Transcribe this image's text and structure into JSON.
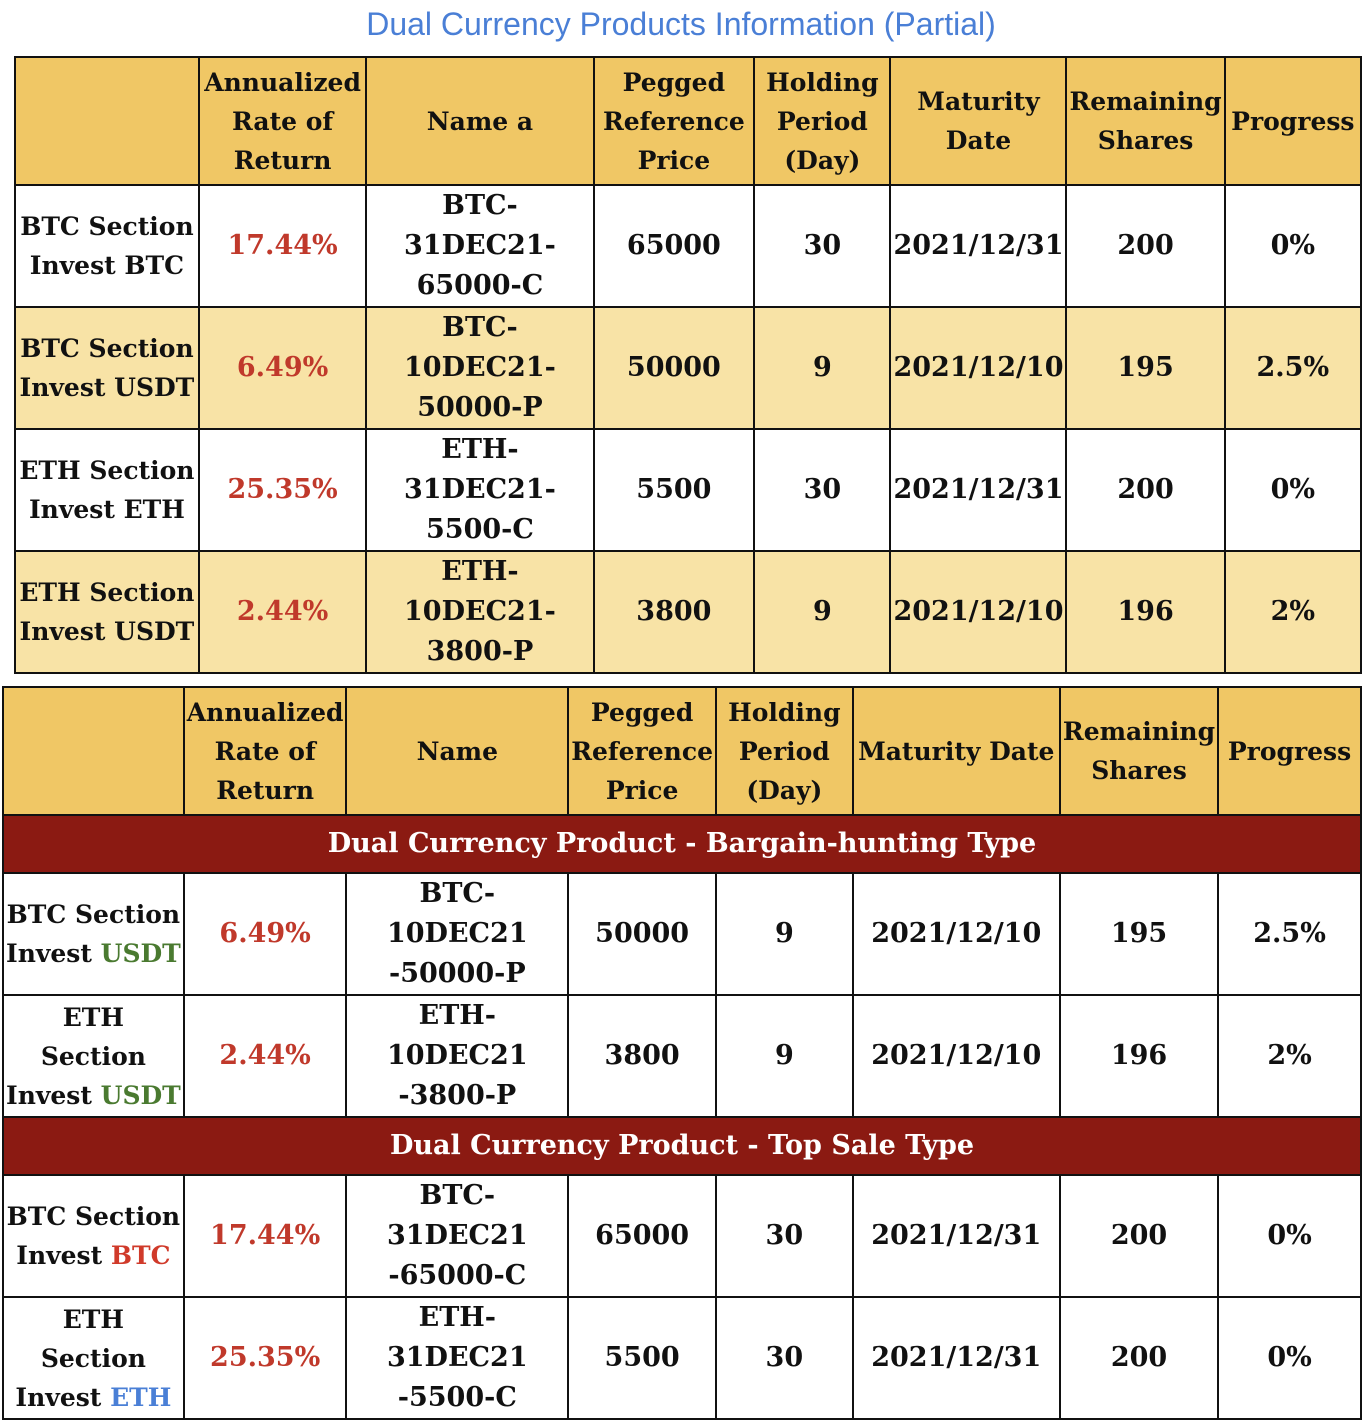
{
  "title": "Dual Currency Products Information (Partial)",
  "colors": {
    "title": "#4a7fd6",
    "header_bg": "#f0c765",
    "alt_row_bg": "#f8e3a6",
    "banner_bg": "#8b1a12",
    "rate": "#c0392b",
    "usdt": "#4a7a30",
    "btc": "#d03a2a",
    "eth": "#4a7fd6"
  },
  "table1": {
    "headers": [
      "",
      "Annualized Rate of Return",
      "Name a",
      "Pegged Reference Price",
      "Holding Period (Day)",
      "Maturity Date",
      "Remaining Shares",
      "Progress"
    ],
    "rows": [
      {
        "section": "BTC Section",
        "invest": "Invest BTC",
        "rate": "17.44%",
        "name1": "BTC-31DEC21-",
        "name2": "65000-C",
        "price": "65000",
        "period": "30",
        "maturity": "2021/12/31",
        "shares": "200",
        "progress": "0%"
      },
      {
        "section": "BTC Section",
        "invest": "Invest USDT",
        "rate": "6.49%",
        "name1": "BTC-10DEC21-",
        "name2": "50000-P",
        "price": "50000",
        "period": "9",
        "maturity": "2021/12/10",
        "shares": "195",
        "progress": "2.5%"
      },
      {
        "section": "ETH Section",
        "invest": "Invest ETH",
        "rate": "25.35%",
        "name1": "ETH-31DEC21-",
        "name2": "5500-C",
        "price": "5500",
        "period": "30",
        "maturity": "2021/12/31",
        "shares": "200",
        "progress": "0%"
      },
      {
        "section": "ETH Section",
        "invest": "Invest USDT",
        "rate": "2.44%",
        "name1": "ETH-10DEC21-",
        "name2": "3800-P",
        "price": "3800",
        "period": "9",
        "maturity": "2021/12/10",
        "shares": "196",
        "progress": "2%"
      }
    ]
  },
  "table2": {
    "headers": [
      "",
      "Annualized Rate of Return",
      "Name",
      "Pegged Reference Price",
      "Holding Period (Day)",
      "Maturity Date",
      "Remaining Shares",
      "Progress"
    ],
    "groups": [
      {
        "banner": "Dual Currency Product - Bargain-hunting Type",
        "rows": [
          {
            "section": "BTC Section",
            "invest_prefix": "Invest ",
            "invest_coin": "USDT",
            "rate": "6.49%",
            "name1": "BTC-10DEC21",
            "name2": "-50000-P",
            "price": "50000",
            "period": "9",
            "maturity": "2021/12/10",
            "shares": "195",
            "progress": "2.5%"
          },
          {
            "section": "ETH Section",
            "invest_prefix": "Invest ",
            "invest_coin": "USDT",
            "rate": "2.44%",
            "name1": "ETH-10DEC21",
            "name2": "-3800-P",
            "price": "3800",
            "period": "9",
            "maturity": "2021/12/10",
            "shares": "196",
            "progress": "2%"
          }
        ]
      },
      {
        "banner": "Dual Currency Product - Top Sale Type",
        "rows": [
          {
            "section": "BTC Section",
            "invest_prefix": "Invest ",
            "invest_coin": "BTC",
            "rate": "17.44%",
            "name1": "BTC-31DEC21",
            "name2": "-65000-C",
            "price": "65000",
            "period": "30",
            "maturity": "2021/12/31",
            "shares": "200",
            "progress": "0%"
          },
          {
            "section": "ETH Section",
            "invest_prefix": "Invest ",
            "invest_coin": "ETH",
            "rate": "25.35%",
            "name1": "ETH-31DEC21",
            "name2": "-5500-C",
            "price": "5500",
            "period": "30",
            "maturity": "2021/12/31",
            "shares": "200",
            "progress": "0%"
          }
        ]
      }
    ]
  }
}
